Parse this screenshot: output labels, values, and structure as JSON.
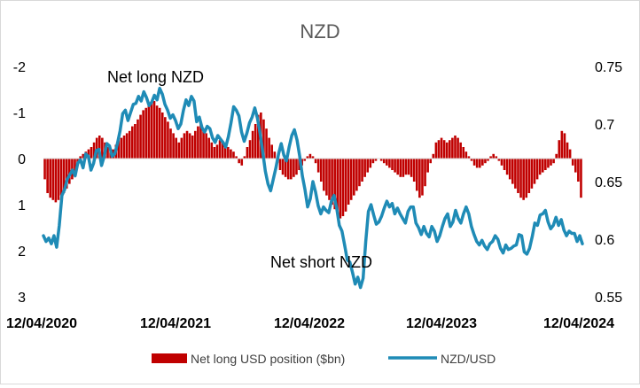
{
  "chart_data": {
    "type": "bar+line",
    "title": "NZD",
    "left_axis": {
      "ticks": [
        "-2",
        "-1",
        "0",
        "1",
        "2",
        "3"
      ],
      "range": [
        -2,
        3
      ],
      "inverted": true
    },
    "right_axis": {
      "ticks": [
        "0.75",
        "0.7",
        "0.65",
        "0.6",
        "0.55"
      ],
      "range": [
        0.55,
        0.75
      ]
    },
    "x_ticks": [
      "12/04/2020",
      "12/04/2021",
      "12/04/2022",
      "12/04/2023",
      "12/04/2024"
    ],
    "annotations": {
      "long": "Net long NZD",
      "short": "Net short NZD"
    },
    "legend": {
      "bars": "Net long USD position ($bn)",
      "line": "NZD/USD"
    },
    "colors": {
      "bars": "#c00000",
      "line": "#1f8bb6"
    },
    "series": [
      {
        "name": "Net long USD position ($bn)",
        "axis": "left",
        "values": [
          0.45,
          0.75,
          0.85,
          0.9,
          0.95,
          0.9,
          0.8,
          0.75,
          0.65,
          0.55,
          0.45,
          0.3,
          0.1,
          -0.05,
          -0.1,
          -0.15,
          -0.2,
          -0.25,
          -0.35,
          -0.45,
          -0.5,
          -0.45,
          -0.35,
          -0.25,
          -0.15,
          -0.2,
          -0.3,
          -0.4,
          -0.45,
          -0.5,
          -0.55,
          -0.6,
          -0.7,
          -0.75,
          -0.85,
          -0.95,
          -1.05,
          -1.1,
          -1.15,
          -1.2,
          -1.25,
          -1.15,
          -1.1,
          -1.0,
          -0.9,
          -0.8,
          -0.65,
          -0.55,
          -0.45,
          -0.35,
          -0.45,
          -0.55,
          -0.6,
          -0.55,
          -0.5,
          -0.6,
          -0.7,
          -0.75,
          -0.65,
          -0.55,
          -0.45,
          -0.35,
          -0.25,
          -0.3,
          -0.4,
          -0.35,
          -0.3,
          -0.25,
          -0.2,
          -0.15,
          -0.05,
          0.1,
          0.15,
          -0.05,
          -0.25,
          -0.4,
          -0.6,
          -0.75,
          -0.95,
          -1.0,
          -0.85,
          -0.65,
          -0.45,
          -0.3,
          -0.15,
          0.1,
          0.25,
          0.35,
          0.4,
          0.45,
          0.45,
          0.4,
          0.35,
          0.25,
          0.15,
          0.05,
          -0.05,
          -0.1,
          -0.05,
          0.1,
          0.3,
          0.5,
          0.7,
          0.8,
          0.9,
          1.0,
          1.1,
          1.2,
          1.3,
          1.25,
          1.15,
          1.0,
          0.9,
          0.8,
          0.7,
          0.6,
          0.5,
          0.4,
          0.3,
          0.2,
          0.1,
          0.05,
          0.0,
          0.05,
          0.1,
          0.15,
          0.2,
          0.25,
          0.3,
          0.35,
          0.4,
          0.4,
          0.35,
          0.35,
          0.4,
          0.5,
          0.7,
          0.85,
          0.8,
          0.6,
          0.3,
          0.1,
          -0.1,
          -0.35,
          -0.4,
          -0.45,
          -0.4,
          -0.35,
          -0.4,
          -0.45,
          -0.5,
          -0.45,
          -0.35,
          -0.25,
          -0.15,
          -0.05,
          0.05,
          0.15,
          0.2,
          0.2,
          0.15,
          0.1,
          0.05,
          -0.05,
          -0.1,
          -0.05,
          0.05,
          0.15,
          0.25,
          0.35,
          0.45,
          0.55,
          0.65,
          0.75,
          0.85,
          0.9,
          0.85,
          0.75,
          0.65,
          0.55,
          0.45,
          0.35,
          0.3,
          0.25,
          0.2,
          0.15,
          0.1,
          -0.1,
          -0.4,
          -0.6,
          -0.55,
          -0.35,
          -0.2,
          0.15,
          0.3,
          0.5,
          0.85
        ]
      },
      {
        "name": "NZD/USD",
        "axis": "right",
        "values": [
          0.603,
          0.598,
          0.601,
          0.596,
          0.603,
          0.593,
          0.612,
          0.638,
          0.643,
          0.652,
          0.656,
          0.66,
          0.655,
          0.666,
          0.669,
          0.662,
          0.674,
          0.672,
          0.66,
          0.666,
          0.677,
          0.678,
          0.664,
          0.672,
          0.683,
          0.681,
          0.672,
          0.674,
          0.683,
          0.694,
          0.709,
          0.712,
          0.703,
          0.71,
          0.717,
          0.718,
          0.724,
          0.72,
          0.728,
          0.723,
          0.716,
          0.719,
          0.725,
          0.721,
          0.731,
          0.726,
          0.717,
          0.712,
          0.705,
          0.708,
          0.703,
          0.696,
          0.7,
          0.712,
          0.721,
          0.716,
          0.724,
          0.72,
          0.702,
          0.706,
          0.697,
          0.693,
          0.698,
          0.696,
          0.688,
          0.684,
          0.69,
          0.687,
          0.684,
          0.68,
          0.689,
          0.701,
          0.715,
          0.712,
          0.707,
          0.693,
          0.685,
          0.692,
          0.701,
          0.706,
          0.714,
          0.705,
          0.692,
          0.676,
          0.659,
          0.648,
          0.642,
          0.652,
          0.662,
          0.674,
          0.683,
          0.673,
          0.668,
          0.68,
          0.69,
          0.695,
          0.686,
          0.672,
          0.655,
          0.643,
          0.628,
          0.635,
          0.65,
          0.641,
          0.629,
          0.622,
          0.628,
          0.625,
          0.623,
          0.633,
          0.638,
          0.627,
          0.612,
          0.607,
          0.595,
          0.582,
          0.58,
          0.571,
          0.561,
          0.567,
          0.558,
          0.566,
          0.598,
          0.624,
          0.63,
          0.621,
          0.613,
          0.615,
          0.62,
          0.627,
          0.633,
          0.628,
          0.631,
          0.622,
          0.627,
          0.622,
          0.618,
          0.614,
          0.624,
          0.628,
          0.628,
          0.614,
          0.61,
          0.604,
          0.611,
          0.605,
          0.602,
          0.611,
          0.607,
          0.598,
          0.603,
          0.611,
          0.618,
          0.622,
          0.611,
          0.615,
          0.625,
          0.618,
          0.614,
          0.622,
          0.628,
          0.622,
          0.611,
          0.604,
          0.598,
          0.595,
          0.599,
          0.594,
          0.591,
          0.596,
          0.598,
          0.603,
          0.6,
          0.592,
          0.588,
          0.595,
          0.591,
          0.592,
          0.594,
          0.595,
          0.604,
          0.603,
          0.589,
          0.587,
          0.592,
          0.602,
          0.614,
          0.612,
          0.621,
          0.622,
          0.625,
          0.615,
          0.609,
          0.612,
          0.619,
          0.612,
          0.617,
          0.608,
          0.603,
          0.607,
          0.605,
          0.605,
          0.598,
          0.603,
          0.596
        ]
      }
    ]
  }
}
